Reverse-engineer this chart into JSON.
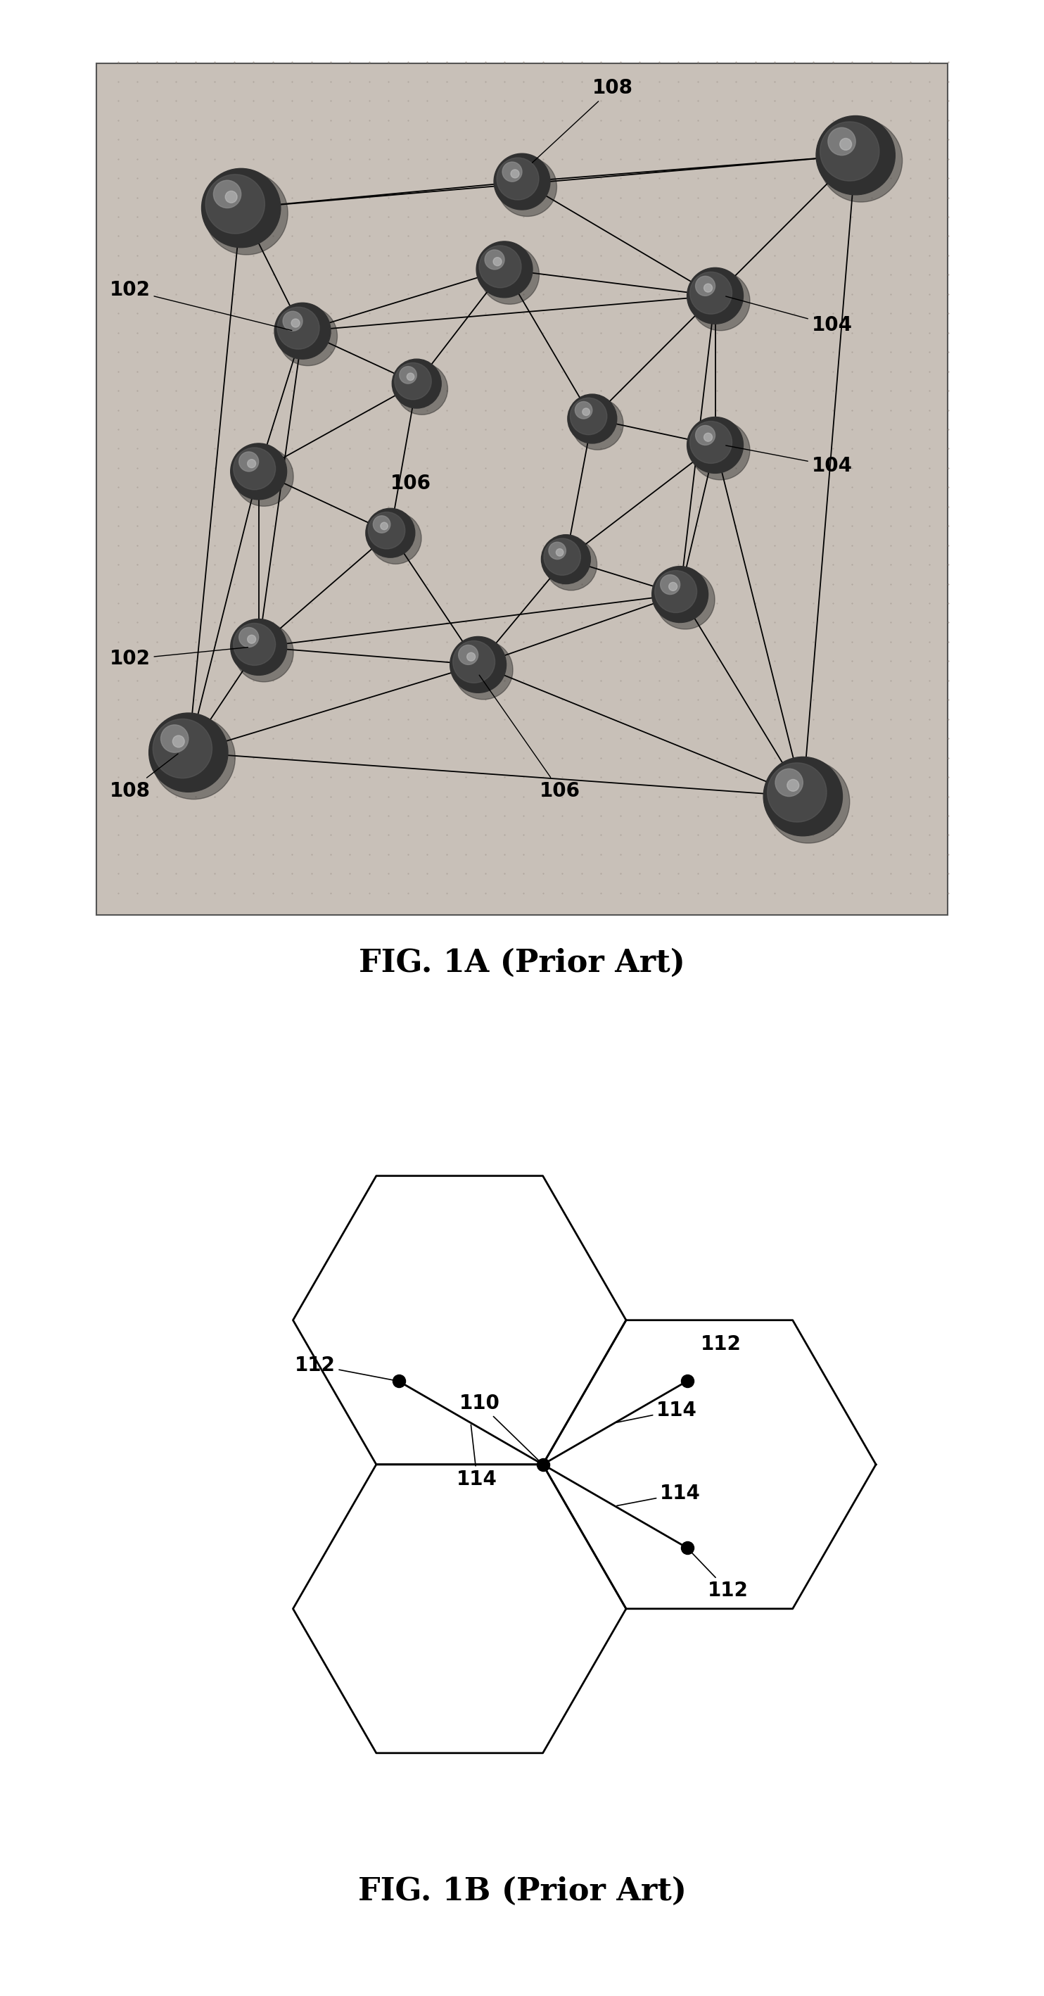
{
  "fig1a_title": "FIG. 1A (Prior Art)",
  "fig1b_title": "FIG. 1B (Prior Art)",
  "background_color": "#ffffff",
  "fig1a_bg": "#c8c0b8",
  "dot_color": "#aaa098",
  "sphere_dark": "#303030",
  "sphere_mid": "#606060",
  "sphere_highlight": "#909090",
  "sphere_top": "#c0c0c0",
  "bond_color": "#000000",
  "label_102_1_text": "102",
  "label_102_2_text": "102",
  "label_104_1_text": "104",
  "label_104_2_text": "104",
  "label_106_1_text": "106",
  "label_106_2_text": "106",
  "label_108_1_text": "108",
  "label_108_2_text": "108",
  "label_110_text": "110",
  "label_112_1_text": "112",
  "label_112_2_text": "112",
  "label_112_3_text": "112",
  "label_114_1_text": "114",
  "label_114_2_text": "114",
  "label_114_3_text": "114",
  "label_fontsize": 20,
  "caption_fontsize": 32,
  "fig1a_xlim": [
    0,
    10
  ],
  "fig1a_ylim": [
    0,
    10
  ],
  "fig1b_xlim": [
    -6,
    6
  ],
  "fig1b_ylim": [
    -5.5,
    6
  ]
}
